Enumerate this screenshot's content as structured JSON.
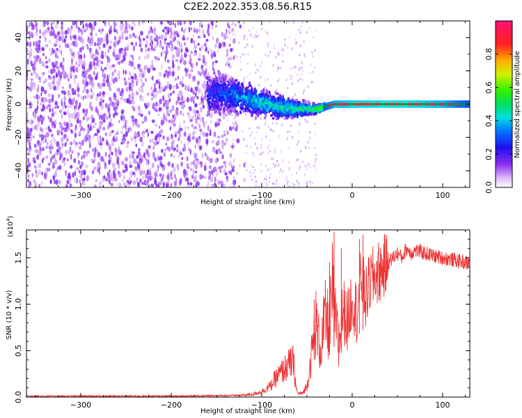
{
  "title": "C2E2.2022.353.08.56.R15",
  "colors": {
    "snr_line": "#ee3333",
    "spectrogram_scatter": "#6a00f0",
    "ridge_line": "#00a000",
    "ridge_peak": "#ff2010"
  },
  "chart_data": [
    {
      "type": "heatmap",
      "name": "spectrogram",
      "xlabel": "Height of straight line (km)",
      "ylabel": "Frequency (Hz)",
      "xlim": [
        -360,
        130
      ],
      "ylim": [
        -50,
        50
      ],
      "xticks": [
        -300,
        -200,
        -100,
        0,
        100
      ],
      "yticks": [
        -40,
        -20,
        0,
        20,
        40
      ],
      "colorbar": {
        "label": "Normalized spectral amplitude",
        "range": [
          0,
          1
        ],
        "ticks": [
          0.0,
          0.2,
          0.4,
          0.6,
          0.8
        ],
        "colormap": "rainbow (white-violet-blue-cyan-green-yellow-red-magenta)"
      },
      "features": {
        "noise_floor_x_range": [
          -360,
          -140
        ],
        "noise_floor_amplitude": 0.12,
        "transition_x_range": [
          -160,
          -30
        ],
        "ridge": [
          {
            "x": -160,
            "f_center": 6,
            "f_spread": 14,
            "amplitude": 0.25
          },
          {
            "x": -130,
            "f_center": 5,
            "f_spread": 10,
            "amplitude": 0.35
          },
          {
            "x": -100,
            "f_center": 1,
            "f_spread": 8,
            "amplitude": 0.45
          },
          {
            "x": -80,
            "f_center": -2,
            "f_spread": 7,
            "amplitude": 0.45
          },
          {
            "x": -60,
            "f_center": -3,
            "f_spread": 5,
            "amplitude": 0.5
          },
          {
            "x": -40,
            "f_center": -3,
            "f_spread": 3,
            "amplitude": 0.55
          },
          {
            "x": -20,
            "f_center": 0,
            "f_spread": 1.5,
            "amplitude": 0.85
          },
          {
            "x": 0,
            "f_center": 0,
            "f_spread": 1,
            "amplitude": 0.9
          },
          {
            "x": 50,
            "f_center": 0,
            "f_spread": 1,
            "amplitude": 0.95
          },
          {
            "x": 100,
            "f_center": 0,
            "f_spread": 1,
            "amplitude": 0.85
          },
          {
            "x": 130,
            "f_center": 0,
            "f_spread": 1,
            "amplitude": 0.65
          }
        ]
      }
    },
    {
      "type": "line",
      "name": "snr",
      "xlabel": "Height of straight line (km)",
      "ylabel": "SNR (10 * v/v)",
      "y_multiplier_label": "(x10",
      "y_multiplier_exp": "4",
      "y_multiplier_close": ")",
      "xlim": [
        -360,
        130
      ],
      "ylim": [
        0,
        1.8
      ],
      "xticks": [
        -300,
        -200,
        -100,
        0,
        100
      ],
      "yticks": [
        0.0,
        0.5,
        1.0,
        1.5
      ],
      "ytick_labels": [
        "0.0",
        "0.5",
        "1.0",
        "1.5"
      ],
      "series": [
        {
          "x": [
            -360,
            -300,
            -250,
            -200,
            -150,
            -120,
            -110,
            -100,
            -90,
            -85,
            -80,
            -75,
            -70,
            -65,
            -62,
            -60,
            -55,
            -50,
            -45,
            -40,
            -35,
            -30,
            -25,
            -22,
            -20,
            -18,
            -15,
            -10,
            -5,
            0,
            5,
            10,
            15,
            20,
            25,
            30,
            40,
            50,
            55,
            60,
            65,
            70,
            80,
            90,
            100,
            110,
            120,
            130
          ],
          "y": [
            0.01,
            0.01,
            0.01,
            0.01,
            0.015,
            0.02,
            0.03,
            0.06,
            0.12,
            0.2,
            0.25,
            0.3,
            0.35,
            0.38,
            0.1,
            0.04,
            0.04,
            0.12,
            0.45,
            0.8,
            0.5,
            0.85,
            0.75,
            1.15,
            0.9,
            0.8,
            0.55,
            0.95,
            0.8,
            1.1,
            0.9,
            1.3,
            1.05,
            1.25,
            1.3,
            1.35,
            1.45,
            1.55,
            1.5,
            1.6,
            1.55,
            1.58,
            1.55,
            1.52,
            1.5,
            1.48,
            1.46,
            1.44
          ],
          "spikes": [
            {
              "x": -42,
              "y": 1.05
            },
            {
              "x": -25,
              "y": 1.45
            },
            {
              "x": -20,
              "y": 1.78
            },
            {
              "x": -12,
              "y": 1.6
            },
            {
              "x": 8,
              "y": 1.7
            },
            {
              "x": 12,
              "y": 1.75
            }
          ]
        }
      ]
    }
  ]
}
